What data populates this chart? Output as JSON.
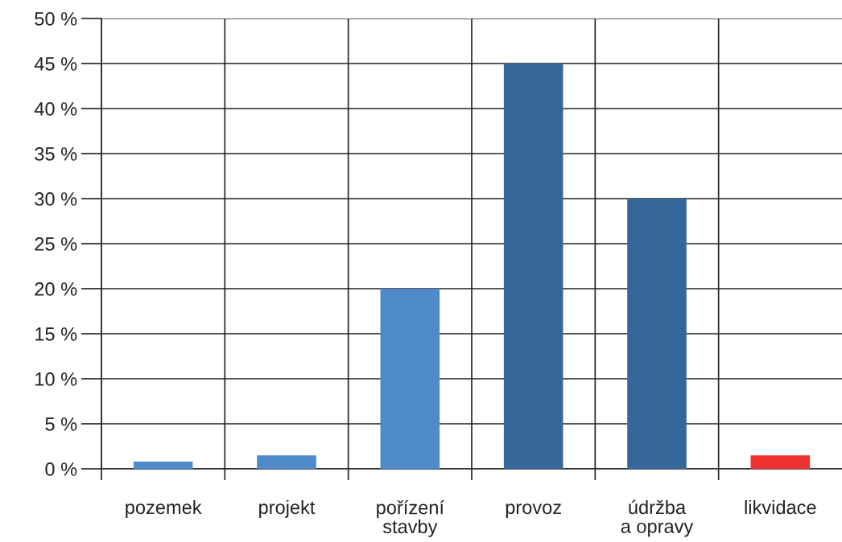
{
  "chart_data": {
    "type": "bar",
    "categories": [
      "pozemek",
      "projekt",
      "pořízení\nstavby",
      "provoz",
      "údržba\na opravy",
      "likvidace"
    ],
    "values": [
      0.8,
      1.5,
      20,
      45,
      30,
      1.5
    ],
    "colors": [
      "#4f8bc9",
      "#4f8bc9",
      "#4f8bc9",
      "#35679a",
      "#35679a",
      "#ee3131"
    ],
    "ylim": [
      0,
      50
    ],
    "yticks": [
      {
        "value": 0,
        "label": "0 %"
      },
      {
        "value": 5,
        "label": "5 %"
      },
      {
        "value": 10,
        "label": "10 %"
      },
      {
        "value": 15,
        "label": "15 %"
      },
      {
        "value": 20,
        "label": "20 %"
      },
      {
        "value": 25,
        "label": "25 %"
      },
      {
        "value": 30,
        "label": "30 %"
      },
      {
        "value": 35,
        "label": "35 %"
      },
      {
        "value": 40,
        "label": "40 %"
      },
      {
        "value": 45,
        "label": "45 %"
      },
      {
        "value": 50,
        "label": "50 %"
      }
    ],
    "grid": true
  }
}
